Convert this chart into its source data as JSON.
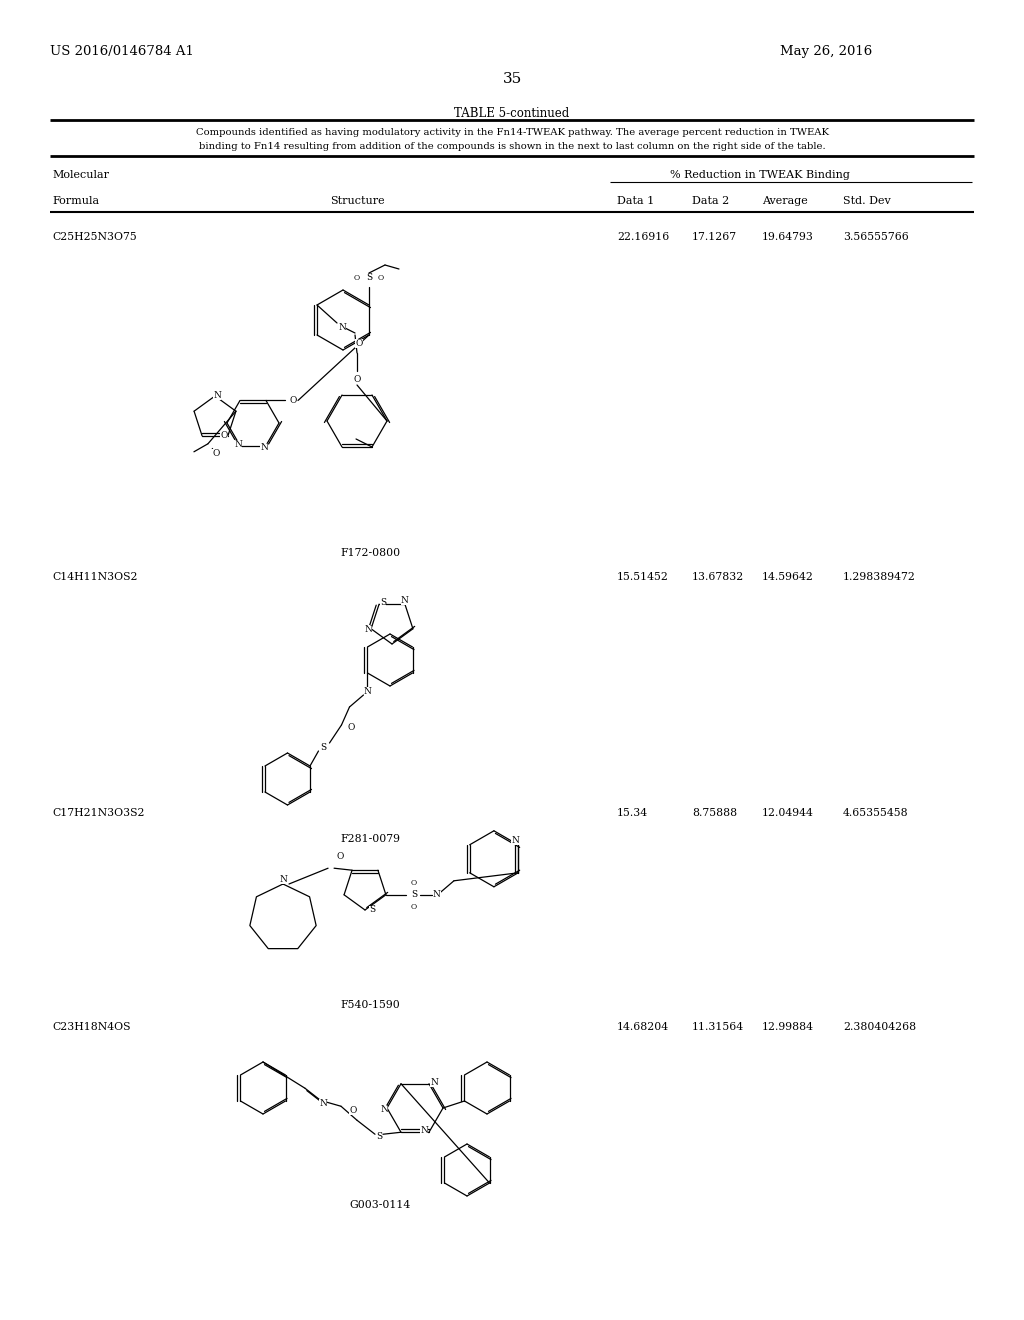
{
  "page_header_left": "US 2016/0146784 A1",
  "page_header_right": "May 26, 2016",
  "page_number": "35",
  "table_title": "TABLE 5-continued",
  "table_caption_line1": "Compounds identified as having modulatory activity in the Fn14-TWEAK pathway. The average percent reduction in TWEAK",
  "table_caption_line2": "binding to Fn14 resulting from addition of the compounds is shown in the next to last column on the right side of the table.",
  "col_molecular": "Molecular",
  "col_formula": "Formula",
  "col_structure": "Structure",
  "col_pct": "% Reduction in TWEAK Binding",
  "col_data1": "Data 1",
  "col_data2": "Data 2",
  "col_avg": "Average",
  "col_std": "Std. Dev",
  "rows": [
    {
      "formula": "C25H25N3O75",
      "id": "F172-0800",
      "d1": "22.16916",
      "d2": "17.1267",
      "avg": "19.64793",
      "std": "3.56555766"
    },
    {
      "formula": "C14H11N3OS2",
      "id": "F281-0079",
      "d1": "15.51452",
      "d2": "13.67832",
      "avg": "14.59642",
      "std": "1.298389472"
    },
    {
      "formula": "C17H21N3O3S2",
      "id": "F540-1590",
      "d1": "15.34",
      "d2": "8.75888",
      "avg": "12.04944",
      "std": "4.65355458"
    },
    {
      "formula": "C23H18N4OS",
      "id": "G003-0114",
      "d1": "14.68204",
      "d2": "11.31564",
      "avg": "12.99884",
      "std": "2.380404268"
    }
  ],
  "bg": "#ffffff",
  "fg": "#000000"
}
